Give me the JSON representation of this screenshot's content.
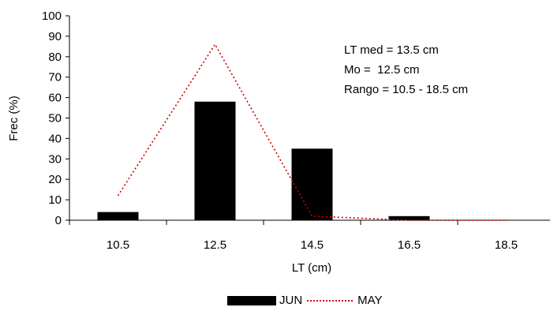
{
  "chart_data": {
    "type": "bar",
    "categories": [
      "10.5",
      "12.5",
      "14.5",
      "16.5",
      "18.5"
    ],
    "series": [
      {
        "name": "JUN",
        "type": "bar",
        "color": "#000000",
        "values": [
          4,
          58,
          35,
          2,
          0
        ]
      },
      {
        "name": "MAY",
        "type": "line",
        "style": "dotted",
        "color": "#cc0000",
        "values": [
          12,
          86,
          2,
          0,
          0
        ]
      }
    ],
    "xlabel": "LT (cm)",
    "ylabel": "Frec (%)",
    "ylim": [
      0,
      100
    ],
    "yticks": [
      "0",
      "10",
      "20",
      "30",
      "40",
      "50",
      "60",
      "70",
      "80",
      "90",
      "100"
    ],
    "grid": false,
    "legend_position": "bottom",
    "annotations": [
      "LT med = 13.5 cm",
      "Mo =  12.5 cm",
      "Rango = 10.5 - 18.5 cm"
    ]
  }
}
